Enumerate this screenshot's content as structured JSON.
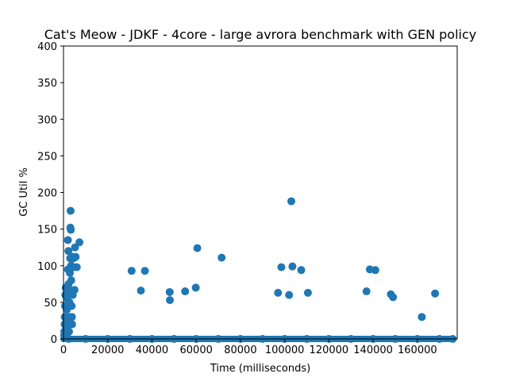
{
  "chart_data": {
    "type": "scatter",
    "title": "Cat's Meow - JDKF - 4core -  large avrora benchmark with GEN policy",
    "xlabel": "Time (milliseconds)",
    "ylabel": "GC Util %",
    "xlim": [
      0,
      178000
    ],
    "ylim": [
      0,
      400
    ],
    "xticks": [
      0,
      20000,
      40000,
      60000,
      80000,
      100000,
      120000,
      140000,
      160000
    ],
    "yticks": [
      0,
      50,
      100,
      150,
      200,
      250,
      300,
      350,
      400
    ],
    "grid": false,
    "marker_color": "#1f77b4",
    "series": [
      {
        "points": [
          [
            300,
            5
          ],
          [
            400,
            10
          ],
          [
            500,
            20
          ],
          [
            600,
            30
          ],
          [
            700,
            45
          ],
          [
            800,
            60
          ],
          [
            1000,
            70
          ],
          [
            1200,
            15
          ],
          [
            1400,
            25
          ],
          [
            1500,
            40
          ],
          [
            1600,
            55
          ],
          [
            1800,
            65
          ],
          [
            2000,
            95
          ],
          [
            2000,
            135
          ],
          [
            2200,
            120
          ],
          [
            2300,
            75
          ],
          [
            2400,
            0
          ],
          [
            2500,
            10
          ],
          [
            2600,
            30
          ],
          [
            2700,
            50
          ],
          [
            2800,
            62
          ],
          [
            2900,
            90
          ],
          [
            3000,
            110
          ],
          [
            3100,
            152
          ],
          [
            3200,
            175
          ],
          [
            3300,
            149
          ],
          [
            3400,
            100
          ],
          [
            3500,
            80
          ],
          [
            3600,
            66
          ],
          [
            3700,
            45
          ],
          [
            3800,
            30
          ],
          [
            3900,
            20
          ],
          [
            4000,
            112
          ],
          [
            4200,
            60
          ],
          [
            4500,
            110
          ],
          [
            4800,
            98
          ],
          [
            5000,
            67
          ],
          [
            5200,
            125
          ],
          [
            5500,
            112
          ],
          [
            6000,
            98
          ],
          [
            7200,
            132
          ],
          [
            30800,
            93
          ],
          [
            35000,
            66
          ],
          [
            36800,
            93
          ],
          [
            48000,
            64
          ],
          [
            48100,
            53
          ],
          [
            55000,
            65
          ],
          [
            59800,
            70
          ],
          [
            60500,
            124
          ],
          [
            71500,
            111
          ],
          [
            97000,
            63
          ],
          [
            98500,
            98
          ],
          [
            102000,
            60
          ],
          [
            103000,
            188
          ],
          [
            103500,
            99
          ],
          [
            107500,
            94
          ],
          [
            110500,
            63
          ],
          [
            137000,
            65
          ],
          [
            138500,
            95
          ],
          [
            141000,
            94
          ],
          [
            148000,
            61
          ],
          [
            149000,
            57
          ],
          [
            162000,
            30
          ],
          [
            168000,
            62
          ],
          [
            10000,
            0
          ],
          [
            20000,
            0
          ],
          [
            30000,
            0
          ],
          [
            40000,
            0
          ],
          [
            50000,
            0
          ],
          [
            60000,
            0
          ],
          [
            70000,
            0
          ],
          [
            80000,
            0
          ],
          [
            90000,
            0
          ],
          [
            100000,
            0
          ],
          [
            110000,
            0
          ],
          [
            120000,
            0
          ],
          [
            130000,
            0
          ],
          [
            140000,
            0
          ],
          [
            150000,
            0
          ],
          [
            160000,
            0
          ],
          [
            170000,
            0
          ],
          [
            176000,
            0
          ]
        ]
      }
    ]
  }
}
